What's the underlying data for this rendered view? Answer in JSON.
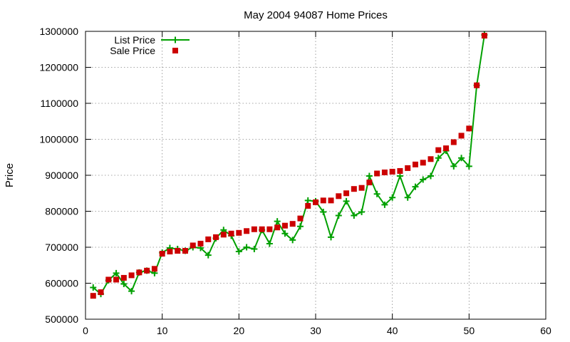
{
  "chart_data": {
    "type": "line",
    "title": "May 2004 94087 Home Prices",
    "xlabel": "",
    "ylabel": "Price",
    "xlim": [
      0,
      60
    ],
    "ylim": [
      500000,
      1300000
    ],
    "x_ticks": [
      0,
      10,
      20,
      30,
      40,
      50,
      60
    ],
    "y_ticks": [
      500000,
      600000,
      700000,
      800000,
      900000,
      1000000,
      1100000,
      1200000,
      1300000
    ],
    "grid": true,
    "legend_position": "top-left",
    "series": [
      {
        "name": "List Price",
        "style": "line-plus",
        "color": "#00a000",
        "x": [
          1,
          2,
          3,
          4,
          5,
          6,
          7,
          8,
          9,
          10,
          11,
          12,
          13,
          14,
          15,
          16,
          17,
          18,
          19,
          20,
          21,
          22,
          23,
          24,
          25,
          26,
          27,
          28,
          29,
          30,
          31,
          32,
          33,
          34,
          35,
          36,
          37,
          38,
          39,
          40,
          41,
          42,
          43,
          44,
          45,
          46,
          47,
          48,
          49,
          50,
          51,
          52
        ],
        "values": [
          588000,
          570000,
          608000,
          628000,
          598000,
          578000,
          630000,
          635000,
          628000,
          685000,
          698000,
          695000,
          690000,
          700000,
          698000,
          678000,
          725000,
          748000,
          732000,
          688000,
          700000,
          695000,
          748000,
          710000,
          772000,
          738000,
          720000,
          758000,
          830000,
          828000,
          798000,
          728000,
          788000,
          828000,
          788000,
          798000,
          898000,
          848000,
          818000,
          838000,
          898000,
          838000,
          868000,
          888000,
          898000,
          948000,
          968000,
          925000,
          948000,
          925000,
          1150000,
          1290000
        ]
      },
      {
        "name": "Sale Price",
        "style": "square",
        "color": "#cc0000",
        "x": [
          1,
          2,
          3,
          4,
          5,
          6,
          7,
          8,
          9,
          10,
          11,
          12,
          13,
          14,
          15,
          16,
          17,
          18,
          19,
          20,
          21,
          22,
          23,
          24,
          25,
          26,
          27,
          28,
          29,
          30,
          31,
          32,
          33,
          34,
          35,
          36,
          37,
          38,
          39,
          40,
          41,
          42,
          43,
          44,
          45,
          46,
          47,
          48,
          49,
          50,
          51,
          52
        ],
        "values": [
          565000,
          575000,
          610000,
          610000,
          615000,
          622000,
          630000,
          635000,
          640000,
          682000,
          688000,
          690000,
          690000,
          705000,
          710000,
          722000,
          728000,
          735000,
          738000,
          740000,
          745000,
          750000,
          750000,
          750000,
          755000,
          760000,
          765000,
          780000,
          815000,
          825000,
          830000,
          830000,
          842000,
          850000,
          862000,
          865000,
          880000,
          905000,
          908000,
          910000,
          912000,
          920000,
          930000,
          935000,
          945000,
          970000,
          975000,
          992000,
          1010000,
          1030000,
          1150000,
          1288000
        ]
      }
    ]
  }
}
